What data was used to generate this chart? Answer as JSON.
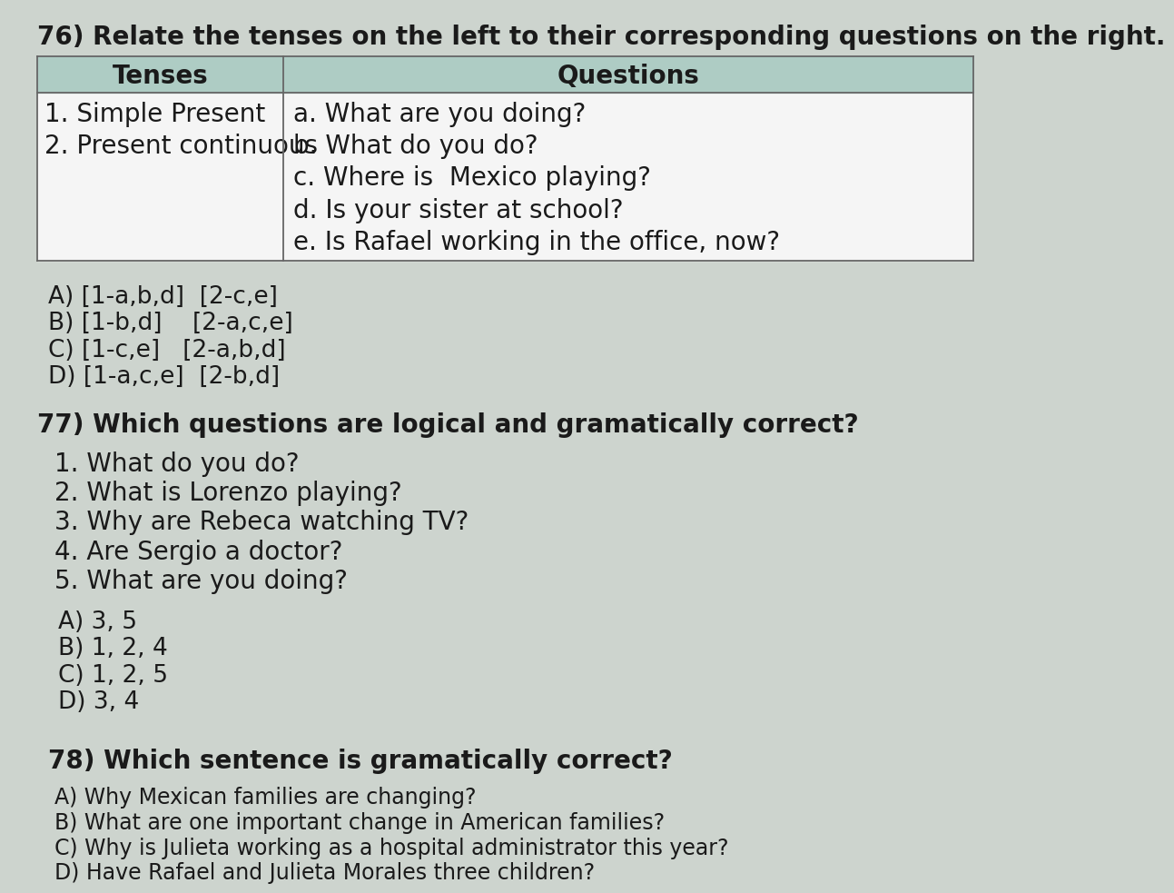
{
  "background_color": "#cdd4ce",
  "title_q76": "76) Relate the tenses on the left to their corresponding questions on the right.",
  "table_header_left": "Tenses",
  "table_header_right": "Questions",
  "table_header_bg": "#aeccc4",
  "table_body_bg": "#f5f5f5",
  "table_left_col": [
    "1. Simple Present",
    "2. Present continuous"
  ],
  "table_right_col": [
    "a. What are you doing?",
    "b. What do you do?",
    "c. Where is  Mexico playing?",
    "d. Is your sister at school?",
    "e. Is Rafael working in the office, now?"
  ],
  "answers_q76": [
    "A) [1-a,b,d]  [2-c,e]",
    "B) [1-b,d]    [2-a,c,e]",
    "C) [1-c,e]   [2-a,b,d]",
    "D) [1-a,c,e]  [2-b,d]"
  ],
  "title_q77": "77) Which questions are logical and gramatically correct?",
  "questions_q77": [
    "1. What do you do?",
    "2. What is Lorenzo playing?",
    "3. Why are Rebeca watching TV?",
    "4. Are Sergio a doctor?",
    "5. What are you doing?"
  ],
  "answers_q77": [
    "A) 3, 5",
    "B) 1, 2, 4",
    "C) 1, 2, 5",
    "D) 3, 4"
  ],
  "title_q78": "78) Which sentence is gramatically correct?",
  "answers_q78": [
    "A) Why Mexican families are changing?",
    "B) What are one important change in American families?",
    "C) Why is Julieta working as a hospital administrator this year?",
    "D) Have Rafael and Julieta Morales three children?"
  ],
  "title_fontsize": 20,
  "header_fontsize": 20,
  "body_fontsize": 20,
  "answer_fontsize": 19,
  "q78_fontsize": 17
}
